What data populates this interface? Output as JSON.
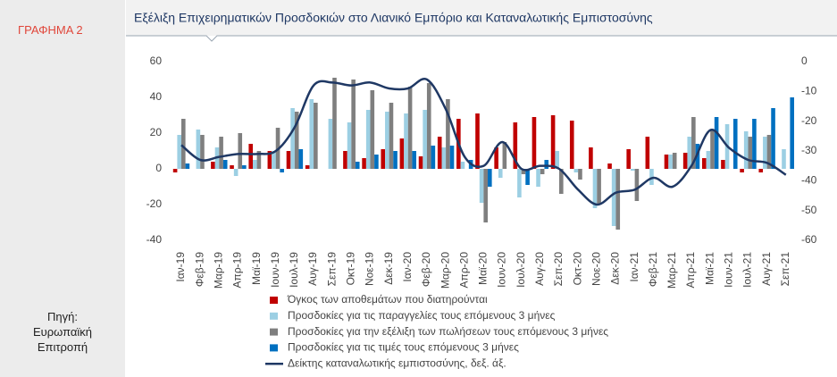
{
  "figure_label": "ΓΡΑΦΗΜΑ 2",
  "source": "Πηγή: Ευρωπαϊκή Επιτροπή",
  "chart_data": {
    "type": "bar",
    "title": "Εξέλιξη Επιχειρηματικών Προσδοκιών στο Λιανικό Εμπόριο και Καταναλωτικής Εμπιστοσύνης",
    "categories": [
      "Ιαν-19",
      "Φεβ-19",
      "Μαρ-19",
      "Απρ-19",
      "Μαϊ-19",
      "Ιουν-19",
      "Ιουλ-19",
      "Αυγ-19",
      "Σεπ-19",
      "Οκτ-19",
      "Νοε-19",
      "Δεκ-19",
      "Ιαν-20",
      "Φεβ-20",
      "Μαρ-20",
      "Απρ-20",
      "Μαϊ-20",
      "Ιουν-20",
      "Ιουλ-20",
      "Αυγ-20",
      "Σεπ-20",
      "Οκτ-20",
      "Νοε-20",
      "Δεκ-20",
      "Ιαν-21",
      "Φεβ-21",
      "Μαρ-21",
      "Απρ-21",
      "Μαϊ-21",
      "Ιουν-21",
      "Ιουλ-21",
      "Αυγ-21",
      "Σεπ-21"
    ],
    "series": [
      {
        "name": "Όγκος των αποθεμάτων που διατηρούνται",
        "color": "#c00000",
        "values": [
          -2,
          0,
          4,
          2,
          14,
          10,
          10,
          2,
          0,
          10,
          6,
          11,
          17,
          7,
          18,
          28,
          31,
          12,
          26,
          29,
          30,
          27,
          12,
          3,
          11,
          18,
          8,
          9,
          6,
          5,
          -2,
          -2,
          0
        ]
      },
      {
        "name": "Προσδοκίες για τις παραγγελίες  τους επόμενους 3 μήνες",
        "color": "#9ccfe3",
        "values": [
          19,
          22,
          12,
          -4,
          5,
          10,
          34,
          39,
          28,
          26,
          33,
          32,
          31,
          33,
          12,
          4,
          -19,
          -5,
          -16,
          -10,
          10,
          -2,
          -22,
          -32,
          -1,
          -9,
          8,
          18,
          10,
          25,
          21,
          18,
          11
        ]
      },
      {
        "name": "Προσδοκίες για την εξέλιξη  των πωλήσεων  τους επόμενους 3 μήνες",
        "color": "#7f7f7f",
        "values": [
          28,
          19,
          18,
          20,
          10,
          23,
          32,
          37,
          51,
          50,
          44,
          37,
          46,
          48,
          39,
          0,
          -30,
          15,
          -3,
          -3,
          -14,
          -6,
          -20,
          -34,
          -18,
          0,
          9,
          29,
          22,
          0,
          18,
          19,
          0
        ]
      },
      {
        "name": "Προσδοκίες για τις τιμές τους επόμενους 3 μήνες",
        "color": "#0070c0",
        "values": [
          3,
          0,
          5,
          2,
          0,
          -2,
          11,
          0,
          0,
          4,
          8,
          10,
          10,
          13,
          13,
          5,
          -10,
          0,
          -9,
          5,
          0,
          0,
          0,
          0,
          0,
          0,
          0,
          14,
          29,
          28,
          28,
          34,
          40
        ]
      },
      {
        "name": "Δείκτης καταναλωτικής εμπιστοσύνης, δεξ. άξ.",
        "color": "#1f3864",
        "type": "line",
        "axis": "y2",
        "values": [
          -28,
          -33,
          -32,
          -31,
          -31,
          -30,
          -22,
          -8,
          -7,
          -8,
          -7,
          -9,
          -9,
          -6,
          -16,
          -32,
          -35,
          -27,
          -36,
          -35,
          -36,
          -43,
          -48,
          -44,
          -43,
          -39,
          -42,
          -35,
          -23,
          -29,
          -33,
          -34,
          -38
        ]
      }
    ],
    "ylim": [
      -40,
      60
    ],
    "yticks": [
      -40,
      -20,
      0,
      20,
      40,
      60
    ],
    "y2lim": [
      -60,
      0
    ],
    "y2ticks": [
      -60,
      -50,
      -40,
      -30,
      -20,
      -10,
      0
    ],
    "grid": false
  }
}
